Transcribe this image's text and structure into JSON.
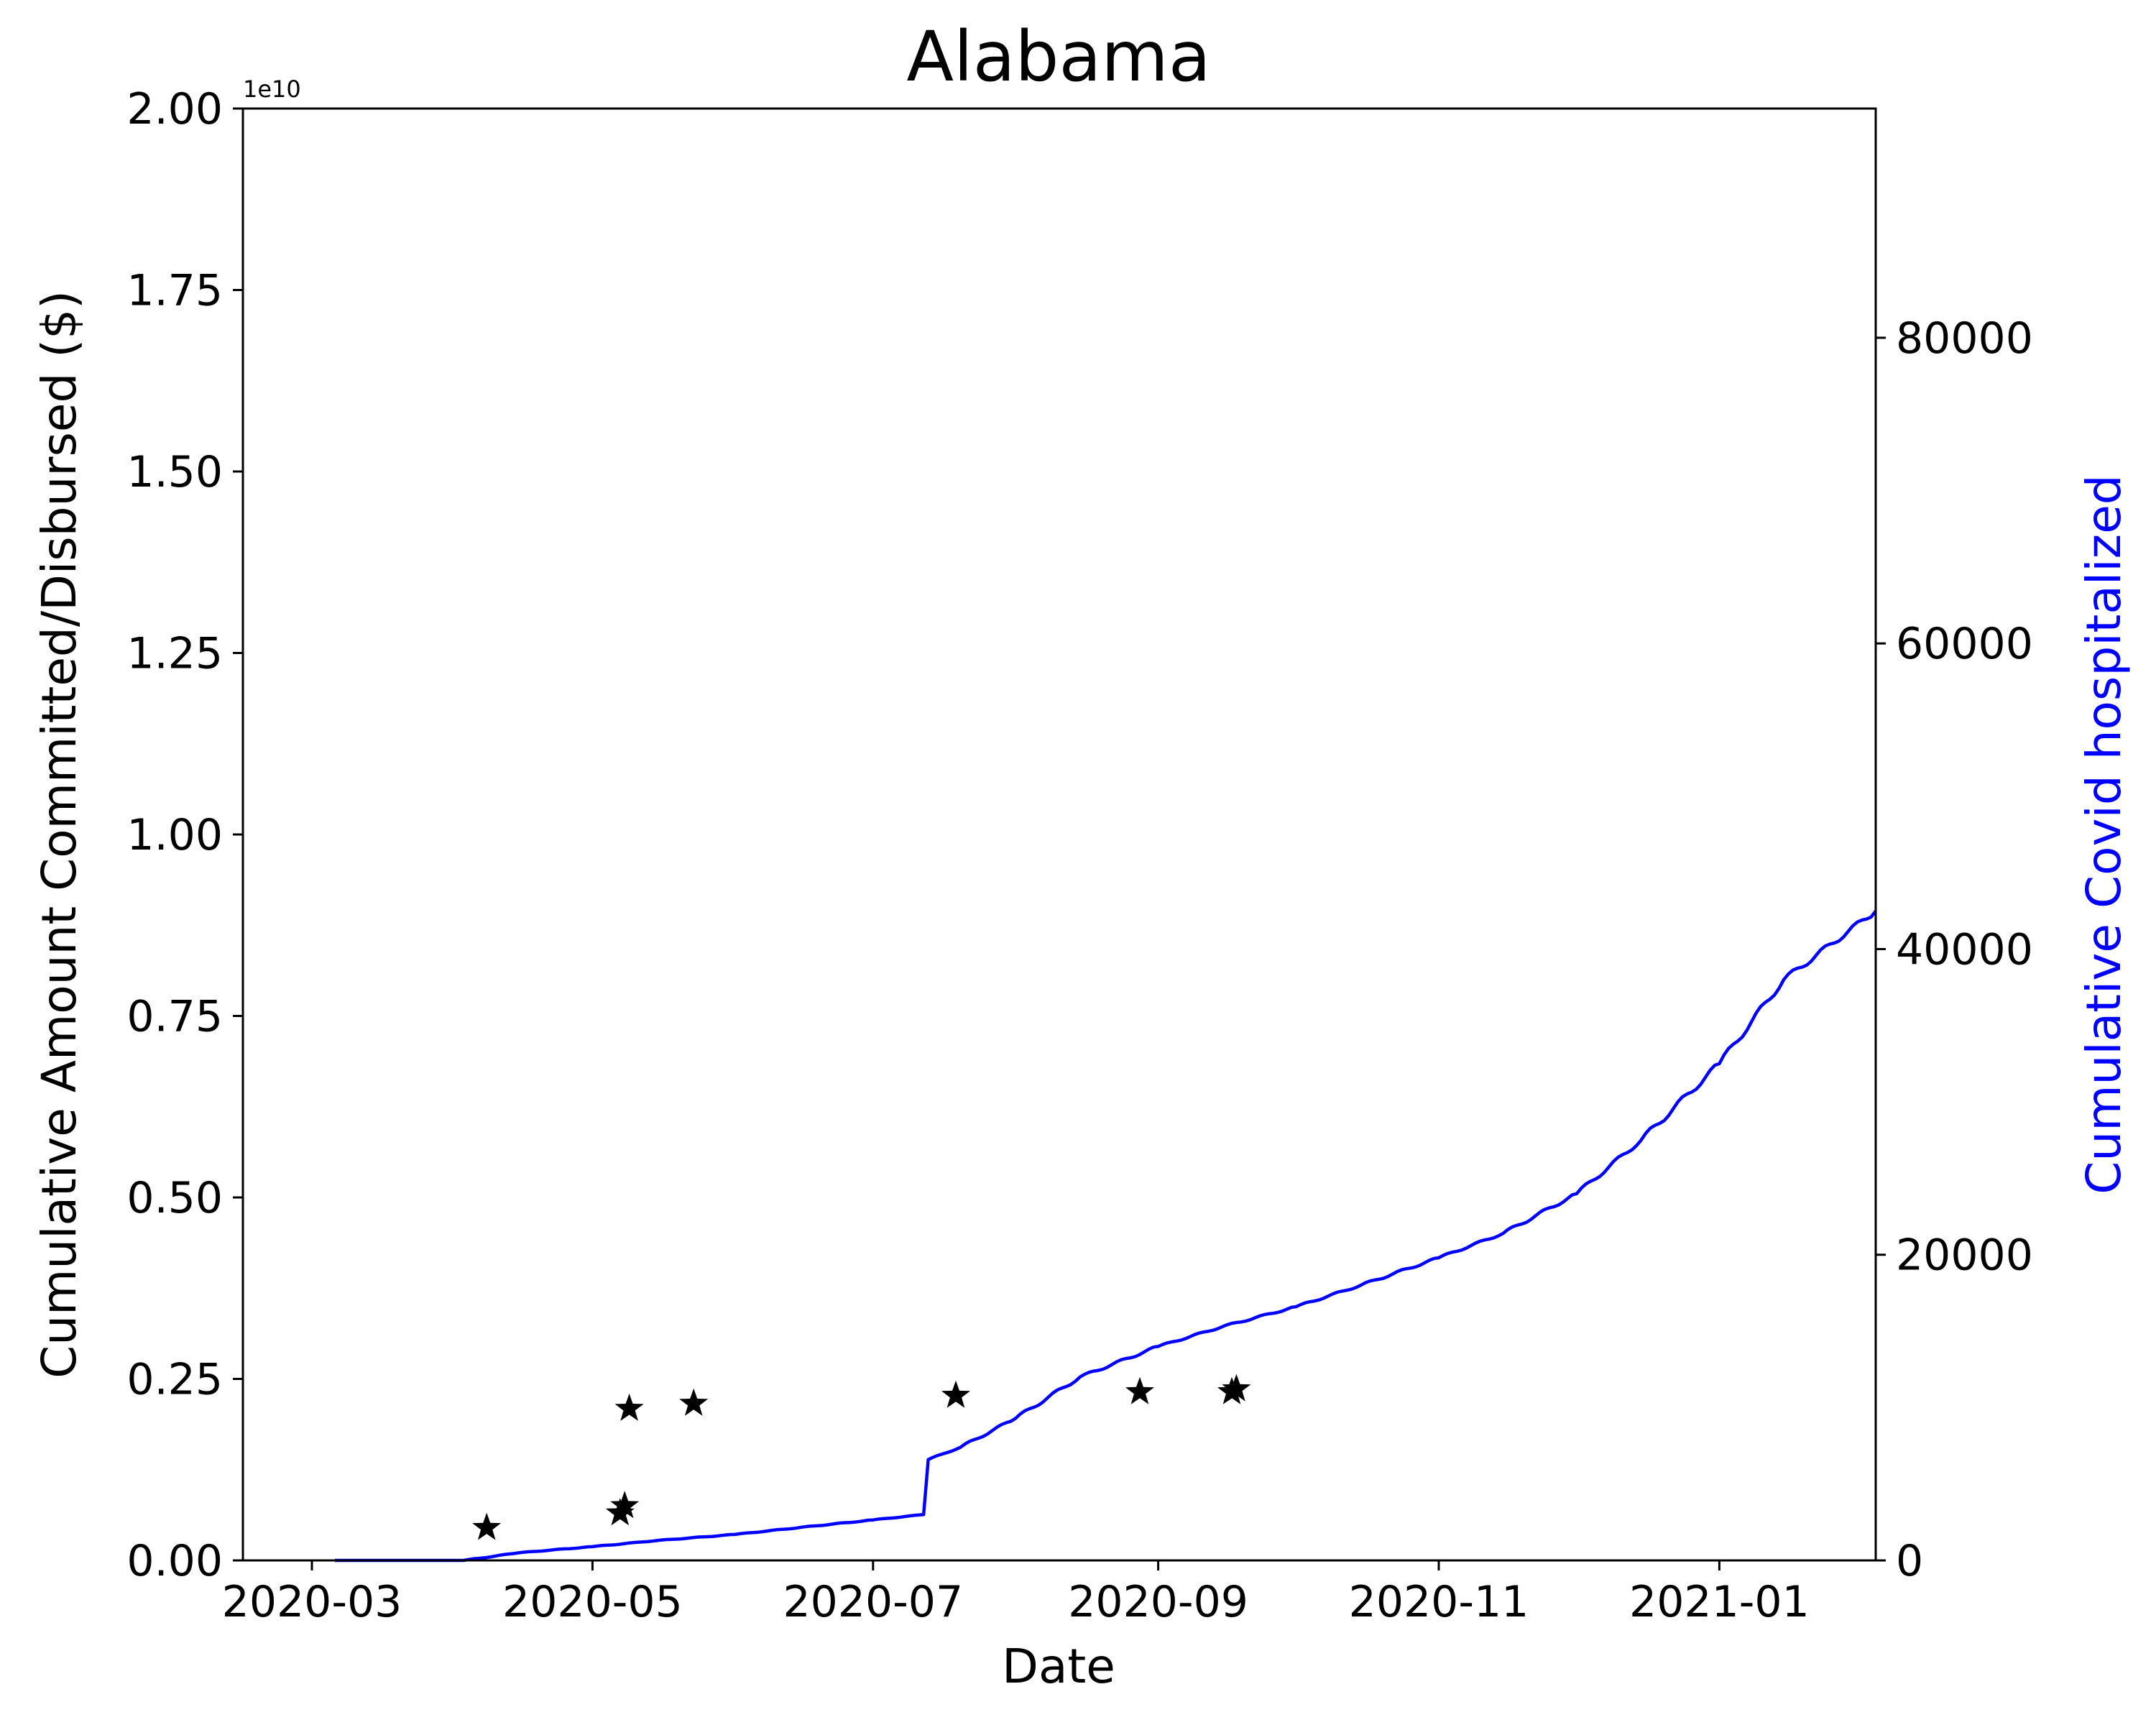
{
  "chart_data": {
    "type": "line",
    "title": "Alabama",
    "xlabel": "Date",
    "ylabel_left": "Cumulative Amount Committed/Disbursed ($)",
    "ylabel_right": "Cumulative Covid hospitalized",
    "left_axis_multiplier": "1e10",
    "left_ylim": [
      0,
      2.0
    ],
    "left_yticks": [
      "0.00",
      "0.25",
      "0.50",
      "0.75",
      "1.00",
      "1.25",
      "1.50",
      "1.75",
      "2.00"
    ],
    "right_ylim": [
      0,
      95000
    ],
    "right_yticks": [
      "0",
      "20000",
      "40000",
      "60000",
      "80000"
    ],
    "xlim": [
      "2020-02-15",
      "2021-02-04"
    ],
    "xticks": [
      "2020-03",
      "2020-05",
      "2020-07",
      "2020-09",
      "2020-11",
      "2021-01"
    ],
    "grid": false,
    "colors": {
      "hospitalized_line": "#0000ff",
      "commitment_markers": "#000000",
      "right_axis_label": "#0000ff"
    },
    "commitments": {
      "axis": "left",
      "marker": "star",
      "points": [
        {
          "x": "2020-04-08",
          "y": 0.045
        },
        {
          "x": "2020-05-07",
          "y": 0.065
        },
        {
          "x": "2020-05-08",
          "y": 0.075
        },
        {
          "x": "2020-05-09",
          "y": 0.209
        },
        {
          "x": "2020-05-23",
          "y": 0.216
        },
        {
          "x": "2020-07-19",
          "y": 0.227
        },
        {
          "x": "2020-08-28",
          "y": 0.232
        },
        {
          "x": "2020-09-17",
          "y": 0.232
        },
        {
          "x": "2020-09-18",
          "y": 0.236
        }
      ]
    },
    "hospitalized": {
      "axis": "right",
      "points": [
        {
          "x": "2020-03-06",
          "y": 0
        },
        {
          "x": "2020-04-03",
          "y": 0
        },
        {
          "x": "2020-04-15",
          "y": 500
        },
        {
          "x": "2020-05-01",
          "y": 900
        },
        {
          "x": "2020-05-15",
          "y": 1300
        },
        {
          "x": "2020-06-01",
          "y": 1700
        },
        {
          "x": "2020-06-15",
          "y": 2150
        },
        {
          "x": "2020-07-01",
          "y": 2650
        },
        {
          "x": "2020-07-12",
          "y": 3000
        },
        {
          "x": "2020-07-13",
          "y": 6600
        },
        {
          "x": "2020-07-20",
          "y": 7400
        },
        {
          "x": "2020-08-01",
          "y": 9300
        },
        {
          "x": "2020-08-15",
          "y": 12000
        },
        {
          "x": "2020-09-01",
          "y": 14000
        },
        {
          "x": "2020-09-15",
          "y": 15300
        },
        {
          "x": "2020-10-01",
          "y": 16600
        },
        {
          "x": "2020-10-15",
          "y": 18000
        },
        {
          "x": "2020-11-01",
          "y": 19800
        },
        {
          "x": "2020-11-15",
          "y": 21400
        },
        {
          "x": "2020-12-01",
          "y": 24000
        },
        {
          "x": "2020-12-15",
          "y": 27500
        },
        {
          "x": "2021-01-01",
          "y": 32500
        },
        {
          "x": "2021-01-15",
          "y": 38000
        },
        {
          "x": "2021-02-04",
          "y": 42500
        }
      ]
    }
  }
}
